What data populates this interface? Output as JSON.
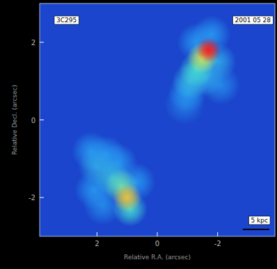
{
  "chart_data": {
    "type": "image",
    "title": "3C295",
    "subtitle": "2001 05 28",
    "x_label": "Relative R.A. (arcsec)",
    "y_label": "Relative Decl. (arcsec)",
    "annotations": [
      "5 kpc"
    ],
    "xlim": [
      3.9,
      -3.9
    ],
    "ylim": [
      -3,
      3
    ],
    "xticks": [
      2,
      0,
      -2
    ],
    "yticks": [
      -2,
      0,
      2
    ],
    "x": [
      -0.9,
      -2.1,
      -1.8,
      -1.3,
      -2.0,
      -1.6,
      -1.0,
      -1.1,
      -1.3,
      -1.5,
      -1.7,
      1.8,
      0.7,
      2.1,
      1.3,
      1.7,
      2.2,
      2.0,
      1.5,
      0.9,
      1.2,
      1.0
    ],
    "y": [
      0.4,
      0.9,
      2.2,
      2.0,
      1.5,
      1.1,
      0.7,
      1.0,
      1.3,
      1.6,
      1.8,
      -2.2,
      -1.6,
      -1.8,
      -1.1,
      -0.9,
      -0.8,
      -1.2,
      -1.5,
      -2.3,
      -1.7,
      -2.0
    ],
    "values": [
      0.2,
      0.25,
      0.3,
      0.3,
      0.35,
      0.35,
      0.3,
      0.4,
      0.5,
      0.7,
      1.0,
      0.25,
      0.3,
      0.3,
      0.3,
      0.3,
      0.3,
      0.35,
      0.4,
      0.5,
      0.55,
      0.8
    ],
    "color_range": [
      0,
      1
    ],
    "grid": false
  }
}
